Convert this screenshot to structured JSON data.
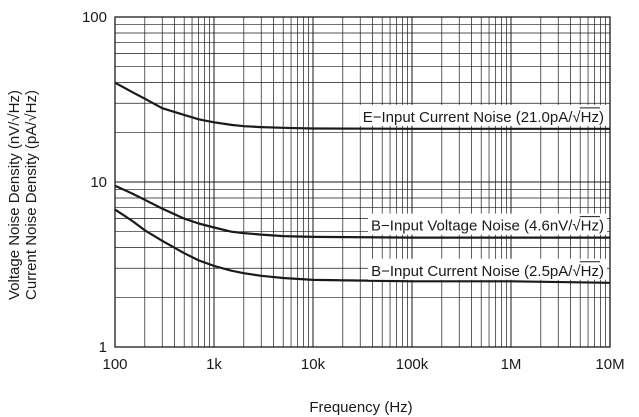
{
  "chart_data": {
    "type": "line",
    "title": "",
    "xlabel": "Frequency (Hz)",
    "ylabel": [
      "Voltage Noise Density (nV/√Hz)",
      "Current Noise Density (pA/√Hz)"
    ],
    "x_scale": "log",
    "y_scale": "log",
    "xlim": [
      100,
      10000000
    ],
    "ylim": [
      1,
      100
    ],
    "grid": true,
    "x_ticks": [
      {
        "value": 100,
        "label": "100"
      },
      {
        "value": 1000,
        "label": "1k"
      },
      {
        "value": 10000,
        "label": "10k"
      },
      {
        "value": 100000,
        "label": "100k"
      },
      {
        "value": 1000000,
        "label": "1M"
      },
      {
        "value": 10000000,
        "label": "10M"
      }
    ],
    "y_ticks": [
      {
        "value": 1,
        "label": "1"
      },
      {
        "value": 10,
        "label": "10"
      },
      {
        "value": 100,
        "label": "100"
      }
    ],
    "series": [
      {
        "name": "E−Input Current Noise (21.0pA/√Hz)",
        "x": [
          100,
          150,
          200,
          300,
          500,
          700,
          1000,
          1500,
          2000,
          3000,
          5000,
          10000,
          100000,
          1000000,
          10000000
        ],
        "y": [
          40,
          35,
          32,
          28,
          25.5,
          24,
          23,
          22.2,
          21.8,
          21.5,
          21.3,
          21.1,
          21.0,
          21.0,
          21.0
        ]
      },
      {
        "name": "B−Input Voltage Noise (4.6nV/√Hz)",
        "x": [
          100,
          150,
          200,
          300,
          500,
          700,
          1000,
          1500,
          2000,
          3000,
          5000,
          10000,
          100000,
          1000000,
          10000000
        ],
        "y": [
          9.5,
          8.5,
          7.8,
          6.9,
          6.0,
          5.6,
          5.3,
          5.0,
          4.9,
          4.8,
          4.7,
          4.65,
          4.6,
          4.6,
          4.6
        ]
      },
      {
        "name": "B−Input Current Noise (2.5pA/√Hz)",
        "x": [
          100,
          150,
          200,
          300,
          500,
          700,
          1000,
          1500,
          2000,
          3000,
          5000,
          10000,
          100000,
          1000000,
          10000000
        ],
        "y": [
          6.8,
          5.8,
          5.1,
          4.4,
          3.7,
          3.35,
          3.1,
          2.9,
          2.8,
          2.7,
          2.62,
          2.55,
          2.5,
          2.5,
          2.45
        ]
      }
    ],
    "annotations": [
      {
        "series": 0,
        "text_main": "E−Input Current Noise (21.0pA/",
        "text_radical": "Hz",
        "text_tail": ")"
      },
      {
        "series": 1,
        "text_main": "B−Input Voltage Noise (4.6nV/",
        "text_radical": "Hz",
        "text_tail": ")"
      },
      {
        "series": 2,
        "text_main": "B−Input Current Noise (2.5pA/",
        "text_radical": "Hz",
        "text_tail": ")"
      }
    ],
    "colors": {
      "line": "#1a1a1a",
      "grid": "#1a1a1a",
      "label_bg": "#ffffff"
    }
  }
}
